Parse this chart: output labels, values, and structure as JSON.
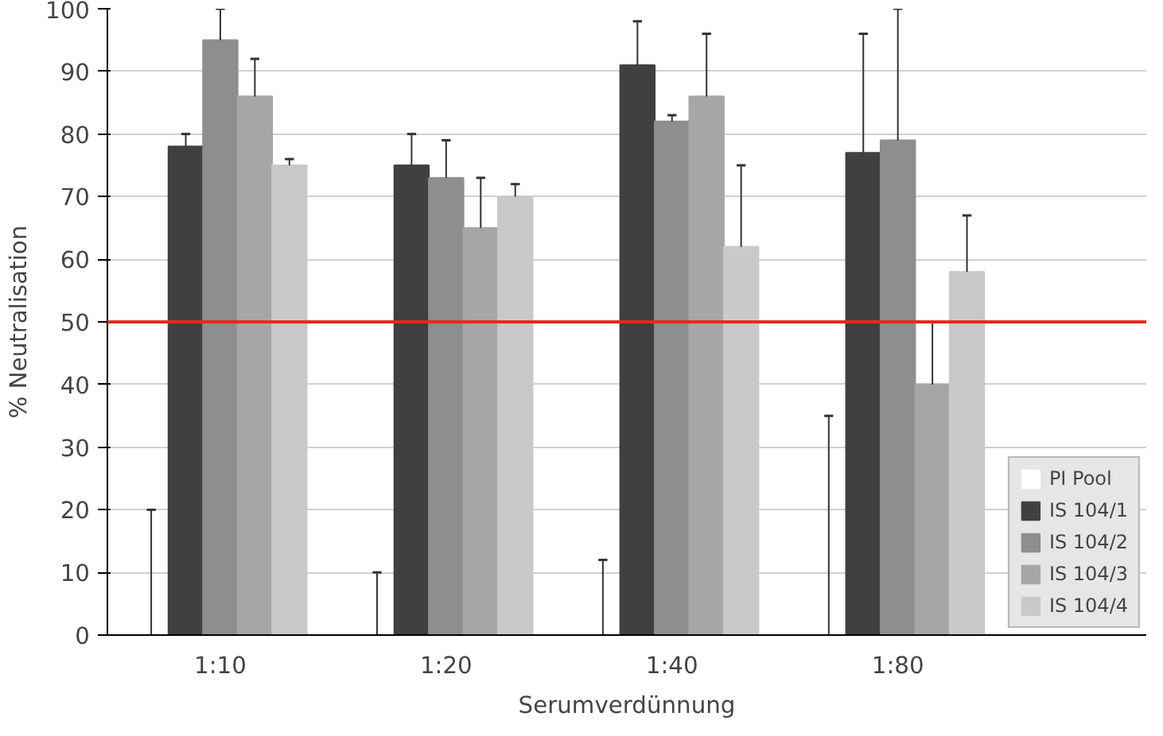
{
  "chart_data": {
    "type": "bar",
    "xlabel": "Serumverdünnung",
    "ylabel": "% Neutralisation",
    "categories": [
      "1:10",
      "1:20",
      "1:40",
      "1:80"
    ],
    "series": [
      {
        "name": "PI Pool",
        "color": "#ffffff",
        "values": [
          0,
          0,
          0,
          0
        ],
        "errors": [
          [
            0,
            20
          ],
          [
            0,
            10
          ],
          [
            0,
            12
          ],
          [
            0,
            35
          ]
        ]
      },
      {
        "name": "IS 104/1",
        "color": "#404040",
        "values": [
          78,
          75,
          91,
          77
        ],
        "errors": [
          [
            78,
            80
          ],
          [
            75,
            80
          ],
          [
            91,
            98
          ],
          [
            77,
            96
          ]
        ]
      },
      {
        "name": "IS 104/2",
        "color": "#8e8e8e",
        "values": [
          95,
          73,
          82,
          79
        ],
        "errors": [
          [
            95,
            100
          ],
          [
            73,
            79
          ],
          [
            82,
            83
          ],
          [
            79,
            100
          ]
        ]
      },
      {
        "name": "IS 104/3",
        "color": "#a6a6a6",
        "values": [
          86,
          65,
          86,
          40
        ],
        "errors": [
          [
            86,
            92
          ],
          [
            65,
            73
          ],
          [
            86,
            96
          ],
          [
            40,
            50
          ]
        ]
      },
      {
        "name": "IS 104/4",
        "color": "#c9c9c9",
        "values": [
          75,
          70,
          62,
          58
        ],
        "errors": [
          [
            75,
            76
          ],
          [
            70,
            72
          ],
          [
            62,
            75
          ],
          [
            58,
            67
          ]
        ]
      }
    ],
    "ylim": [
      0,
      100
    ],
    "yticks": [
      0,
      10,
      20,
      30,
      40,
      50,
      60,
      70,
      80,
      90,
      100
    ],
    "ref_lines": [
      {
        "axis": "y",
        "value": 50,
        "color": "#e8291c"
      }
    ],
    "grid": "y",
    "legend": "bottom right"
  }
}
